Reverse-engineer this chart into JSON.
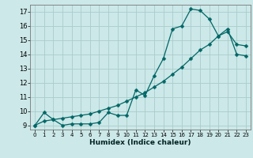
{
  "title": "",
  "xlabel": "Humidex (Indice chaleur)",
  "ylabel": "",
  "bg_color": "#cce8e8",
  "grid_color": "#aacccc",
  "line_color": "#006666",
  "xlim": [
    -0.5,
    23.5
  ],
  "ylim": [
    8.7,
    17.5
  ],
  "yticks": [
    9,
    10,
    11,
    12,
    13,
    14,
    15,
    16,
    17
  ],
  "xticks": [
    0,
    1,
    2,
    3,
    4,
    5,
    6,
    7,
    8,
    9,
    10,
    11,
    12,
    13,
    14,
    15,
    16,
    17,
    18,
    19,
    20,
    21,
    22,
    23
  ],
  "curve1_x": [
    0,
    1,
    2,
    3,
    4,
    5,
    6,
    7,
    8,
    9,
    10,
    11,
    12,
    13,
    14,
    15,
    16,
    17,
    18,
    19,
    20,
    21,
    22,
    23
  ],
  "curve1_y": [
    9.0,
    9.9,
    9.4,
    9.0,
    9.1,
    9.1,
    9.1,
    9.2,
    9.9,
    9.7,
    9.7,
    11.5,
    11.1,
    12.5,
    13.7,
    15.8,
    16.0,
    17.2,
    17.1,
    16.5,
    15.3,
    15.6,
    14.7,
    14.6
  ],
  "curve2_x": [
    0,
    1,
    2,
    3,
    4,
    5,
    6,
    7,
    8,
    9,
    10,
    11,
    12,
    13,
    14,
    15,
    16,
    17,
    18,
    19,
    20,
    21,
    22,
    23
  ],
  "curve2_y": [
    9.0,
    9.3,
    9.4,
    9.5,
    9.6,
    9.7,
    9.8,
    10.0,
    10.2,
    10.4,
    10.7,
    11.0,
    11.3,
    11.7,
    12.1,
    12.6,
    13.1,
    13.7,
    14.3,
    14.7,
    15.3,
    15.8,
    14.0,
    13.9
  ],
  "xtick_fontsize": 5.0,
  "ytick_fontsize": 6.0,
  "xlabel_fontsize": 6.5,
  "marker_size": 2.5
}
